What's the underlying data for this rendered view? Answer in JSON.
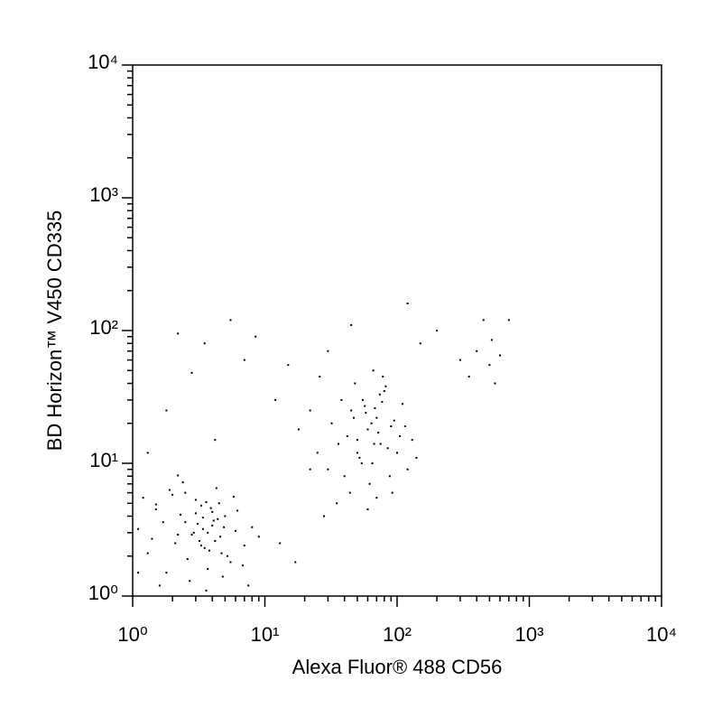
{
  "chart_data": {
    "type": "scatter",
    "x_label": "Alexa Fluor® 488 CD56",
    "y_label": "BD Horizon™ V450 CD335",
    "log_x": true,
    "log_y": true,
    "color": "#000000",
    "xlim": [
      1,
      10000
    ],
    "ylim": [
      1,
      10000
    ],
    "xticks": [
      {
        "value": 1,
        "label": "10⁰"
      },
      {
        "value": 10,
        "label": "10¹"
      },
      {
        "value": 100,
        "label": "10²"
      },
      {
        "value": 1000,
        "label": "10³"
      },
      {
        "value": 10000,
        "label": "10⁴"
      }
    ],
    "yticks": [
      {
        "value": 1,
        "label": "10⁰"
      },
      {
        "value": 10,
        "label": "10¹"
      },
      {
        "value": 100,
        "label": "10²"
      },
      {
        "value": 1000,
        "label": "10³"
      },
      {
        "value": 10000,
        "label": "10⁴"
      }
    ],
    "minor_ticks": [
      2,
      3,
      4,
      5,
      6,
      7,
      8,
      9,
      20,
      30,
      40,
      50,
      60,
      70,
      80,
      90,
      200,
      300,
      400,
      500,
      600,
      700,
      800,
      900,
      2000,
      3000,
      4000,
      5000,
      6000,
      7000,
      8000,
      9000
    ],
    "x": [
      1.1,
      1.3,
      1.5,
      1.8,
      2.0,
      2.2,
      2.5,
      2.7,
      3.0,
      3.2,
      3.4,
      3.6,
      3.8,
      4.0,
      4.3,
      4.6,
      5.0,
      5.5,
      6.0,
      7.0,
      1.2,
      1.6,
      2.1,
      2.4,
      2.9,
      3.3,
      3.7,
      4.1,
      4.5,
      5.2,
      6.2,
      8.0,
      1.4,
      1.9,
      2.6,
      3.1,
      3.5,
      3.9,
      4.4,
      4.8,
      2.3,
      2.8,
      3.4,
      3.6,
      4.2,
      5.8,
      6.8,
      1.7,
      2.2,
      3.0,
      3.7,
      4.0,
      4.7,
      9.0,
      1.1,
      1.5,
      2.5,
      3.3,
      4.9,
      7.5,
      25,
      32,
      40,
      45,
      50,
      55,
      60,
      65,
      70,
      75,
      80,
      90,
      100,
      110,
      120,
      35,
      42,
      48,
      52,
      58,
      62,
      68,
      72,
      78,
      85,
      95,
      130,
      38,
      44,
      54,
      64,
      74,
      88,
      105,
      28,
      47,
      57,
      67,
      82,
      115,
      22,
      30,
      36,
      60,
      70,
      50,
      92,
      140,
      66,
      77,
      1.3,
      1.8,
      2.2,
      2.8,
      3.5,
      4.2,
      5.5,
      7,
      8.5,
      12,
      15,
      18,
      22,
      26,
      30,
      45,
      120,
      150,
      200,
      300,
      350,
      400,
      450,
      500,
      520,
      550,
      600,
      700,
      13,
      17
    ],
    "y": [
      3.2,
      2.1,
      4.5,
      1.5,
      5.8,
      2.9,
      3.6,
      1.3,
      4.2,
      2.6,
      3.9,
      5.1,
      2.2,
      3.4,
      6.5,
      2.8,
      4.0,
      1.8,
      3.1,
      2.4,
      5.5,
      1.2,
      2.5,
      7.2,
      3.0,
      4.8,
      1.6,
      3.7,
      5.0,
      2.0,
      4.4,
      3.3,
      2.7,
      6.3,
      1.9,
      3.5,
      2.3,
      4.6,
      3.8,
      1.4,
      4.1,
      2.9,
      3.2,
      1.1,
      2.6,
      5.6,
      1.7,
      3.6,
      8.1,
      5.3,
      3.0,
      4.3,
      2.1,
      2.8,
      1.5,
      4.9,
      6.0,
      2.4,
      3.3,
      1.2,
      12,
      20,
      8,
      25,
      15,
      30,
      18,
      10,
      22,
      14,
      35,
      19,
      12,
      28,
      9,
      5,
      16,
      40,
      11,
      24,
      7,
      26,
      17,
      45,
      13,
      21,
      15,
      30,
      6,
      10,
      20,
      33,
      8,
      16,
      4,
      22,
      27,
      14,
      38,
      19,
      25,
      9,
      14,
      4.5,
      5.5,
      12,
      6,
      11,
      50,
      29,
      12,
      25,
      95,
      48,
      80,
      15,
      120,
      60,
      90,
      30,
      55,
      18,
      9,
      45,
      70,
      110,
      160,
      80,
      100,
      60,
      45,
      70,
      120,
      55,
      85,
      40,
      65,
      120,
      2.5,
      1.8
    ]
  }
}
